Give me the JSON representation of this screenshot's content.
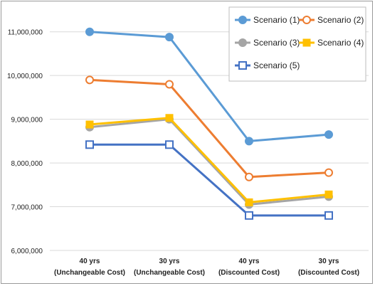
{
  "chart_data": {
    "type": "line",
    "title": "",
    "xlabel": "",
    "ylabel": "",
    "categories": [
      [
        "40 yrs",
        "(Unchangeable Cost)"
      ],
      [
        "30 yrs",
        "(Unchangeable Cost)"
      ],
      [
        "40 yrs",
        "(Discounted Cost)"
      ],
      [
        "30 yrs",
        "(Discounted Cost)"
      ]
    ],
    "ylim": [
      6000000,
      11500000
    ],
    "yticks": [
      6000000,
      7000000,
      8000000,
      9000000,
      10000000,
      11000000
    ],
    "ytick_labels": [
      "6,000,000",
      "7,000,000",
      "8,000,000",
      "9,000,000",
      "10,000,000",
      "11,000,000"
    ],
    "grid": true,
    "legend_position": "top-right",
    "series": [
      {
        "name": "Scenario (1)",
        "color": "#5b9bd5",
        "marker": "circle-filled",
        "values": [
          11000000,
          10880000,
          8500000,
          8650000
        ]
      },
      {
        "name": "Scenario (2)",
        "color": "#ed7d31",
        "marker": "circle-open",
        "values": [
          9900000,
          9800000,
          7680000,
          7780000
        ]
      },
      {
        "name": "Scenario (3)",
        "color": "#a5a5a5",
        "marker": "circle-filled",
        "values": [
          8820000,
          9000000,
          7050000,
          7230000
        ]
      },
      {
        "name": "Scenario (4)",
        "color": "#ffc000",
        "marker": "square-filled",
        "values": [
          8880000,
          9030000,
          7100000,
          7280000
        ]
      },
      {
        "name": "Scenario (5)",
        "color": "#4472c4",
        "marker": "square-open",
        "values": [
          8420000,
          8420000,
          6800000,
          6800000
        ]
      }
    ]
  }
}
